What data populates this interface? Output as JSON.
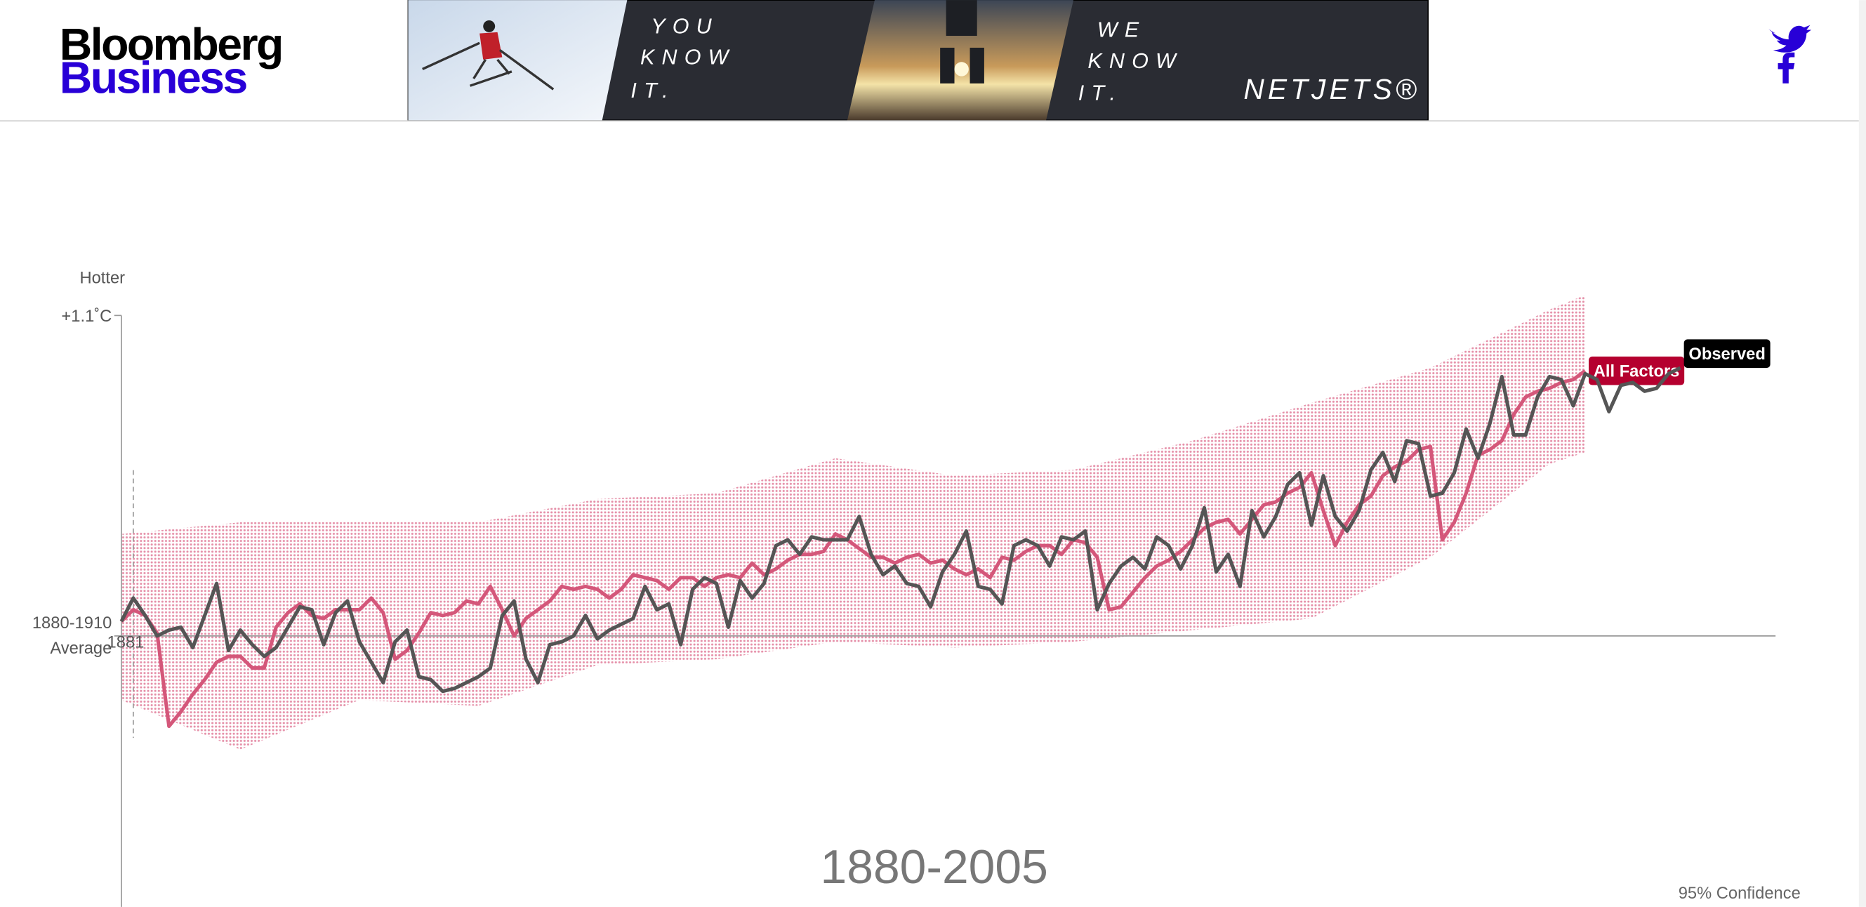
{
  "header": {
    "logo": {
      "line1": "Bloomberg",
      "line2": "Business"
    }
  },
  "ad": {
    "left_text": [
      "YOU",
      "KNOW",
      "IT."
    ],
    "right_text": [
      "WE",
      "KNOW",
      "IT."
    ],
    "brand": "NETJETS®"
  },
  "chart_data": {
    "type": "line",
    "title": "1880-2005",
    "y_annotation": "Hotter",
    "marker_year": 1881,
    "x": [
      1880,
      1881,
      1882,
      1883,
      1884,
      1885,
      1886,
      1887,
      1888,
      1889,
      1890,
      1891,
      1892,
      1893,
      1894,
      1895,
      1896,
      1897,
      1898,
      1899,
      1900,
      1901,
      1902,
      1903,
      1904,
      1905,
      1906,
      1907,
      1908,
      1909,
      1910,
      1911,
      1912,
      1913,
      1914,
      1915,
      1916,
      1917,
      1918,
      1919,
      1920,
      1921,
      1922,
      1923,
      1924,
      1925,
      1926,
      1927,
      1928,
      1929,
      1930,
      1931,
      1932,
      1933,
      1934,
      1935,
      1936,
      1937,
      1938,
      1939,
      1940,
      1941,
      1942,
      1943,
      1944,
      1945,
      1946,
      1947,
      1948,
      1949,
      1950,
      1951,
      1952,
      1953,
      1954,
      1955,
      1956,
      1957,
      1958,
      1959,
      1960,
      1961,
      1962,
      1963,
      1964,
      1965,
      1966,
      1967,
      1968,
      1969,
      1970,
      1971,
      1972,
      1973,
      1974,
      1975,
      1976,
      1977,
      1978,
      1979,
      1980,
      1981,
      1982,
      1983,
      1984,
      1985,
      1986,
      1987,
      1988,
      1989,
      1990,
      1991,
      1992,
      1993,
      1994,
      1995,
      1996,
      1997,
      1998,
      1999,
      2000,
      2001,
      2002,
      2003,
      2004,
      2005,
      2006,
      2007,
      2008,
      2009,
      2010,
      2011
    ],
    "series": [
      {
        "name": "All Factors",
        "color": "#d4577a",
        "label_color": "#b5002f",
        "values": [
          0.05,
          0.09,
          0.07,
          0.01,
          -0.31,
          -0.26,
          -0.2,
          -0.15,
          -0.09,
          -0.07,
          -0.07,
          -0.11,
          -0.11,
          0.03,
          0.08,
          0.11,
          0.07,
          0.06,
          0.09,
          0.09,
          0.09,
          0.13,
          0.08,
          -0.08,
          -0.05,
          0.01,
          0.08,
          0.07,
          0.08,
          0.12,
          0.11,
          0.17,
          0.09,
          0.0,
          0.06,
          0.09,
          0.12,
          0.17,
          0.16,
          0.17,
          0.16,
          0.13,
          0.16,
          0.21,
          0.2,
          0.19,
          0.16,
          0.2,
          0.2,
          0.17,
          0.2,
          0.21,
          0.2,
          0.25,
          0.21,
          0.23,
          0.26,
          0.28,
          0.28,
          0.29,
          0.35,
          0.33,
          0.3,
          0.27,
          0.27,
          0.25,
          0.27,
          0.28,
          0.25,
          0.26,
          0.23,
          0.21,
          0.23,
          0.2,
          0.27,
          0.26,
          0.29,
          0.31,
          0.31,
          0.28,
          0.33,
          0.32,
          0.27,
          0.09,
          0.1,
          0.15,
          0.2,
          0.24,
          0.26,
          0.29,
          0.33,
          0.37,
          0.39,
          0.4,
          0.35,
          0.4,
          0.45,
          0.46,
          0.49,
          0.51,
          0.56,
          0.43,
          0.31,
          0.39,
          0.45,
          0.48,
          0.55,
          0.58,
          0.6,
          0.64,
          0.65,
          0.33,
          0.39,
          0.49,
          0.62,
          0.64,
          0.67,
          0.76,
          0.82,
          0.84,
          0.85,
          0.87,
          0.88,
          0.91,
          null,
          null,
          null,
          null,
          null,
          null,
          null,
          null
        ]
      },
      {
        "name": "Observed",
        "color": "#555555",
        "label_color": "#000000",
        "values": [
          0.05,
          0.13,
          0.07,
          0.0,
          0.02,
          0.03,
          -0.04,
          0.07,
          0.18,
          -0.05,
          0.02,
          -0.03,
          -0.07,
          -0.04,
          0.03,
          0.1,
          0.09,
          -0.03,
          0.08,
          0.12,
          -0.02,
          -0.09,
          -0.16,
          -0.02,
          0.02,
          -0.14,
          -0.15,
          -0.19,
          -0.18,
          -0.16,
          -0.14,
          -0.11,
          0.07,
          0.12,
          -0.08,
          -0.16,
          -0.03,
          -0.02,
          0.0,
          0.07,
          -0.01,
          0.02,
          0.04,
          0.06,
          0.17,
          0.09,
          0.11,
          -0.03,
          0.16,
          0.2,
          0.18,
          0.03,
          0.19,
          0.13,
          0.18,
          0.31,
          0.33,
          0.28,
          0.34,
          0.33,
          0.33,
          0.33,
          0.41,
          0.28,
          0.21,
          0.24,
          0.18,
          0.17,
          0.1,
          0.22,
          0.28,
          0.36,
          0.17,
          0.16,
          0.11,
          0.31,
          0.33,
          0.31,
          0.24,
          0.34,
          0.33,
          0.36,
          0.09,
          0.18,
          0.24,
          0.27,
          0.23,
          0.34,
          0.31,
          0.23,
          0.31,
          0.44,
          0.22,
          0.28,
          0.17,
          0.43,
          0.34,
          0.41,
          0.52,
          0.56,
          0.38,
          0.55,
          0.41,
          0.36,
          0.43,
          0.57,
          0.63,
          0.53,
          0.67,
          0.66,
          0.48,
          0.49,
          0.56,
          0.71,
          0.61,
          0.73,
          0.89,
          0.69,
          0.69,
          0.82,
          0.89,
          0.88,
          0.79,
          0.9,
          0.88,
          0.77,
          0.86,
          0.87,
          0.84,
          0.85,
          0.9,
          0.92
        ]
      }
    ],
    "confidence": {
      "name": "95% Confidence",
      "color": "#e58fa8",
      "x": [
        1880,
        1890,
        1900,
        1910,
        1920,
        1930,
        1940,
        1950,
        1960,
        1970,
        1980,
        1990,
        2000,
        2003
      ],
      "lower": [
        -0.22,
        -0.39,
        -0.22,
        -0.24,
        -0.1,
        -0.08,
        -0.02,
        -0.04,
        -0.02,
        0.02,
        0.06,
        0.27,
        0.59,
        0.63
      ],
      "upper": [
        0.35,
        0.39,
        0.39,
        0.39,
        0.47,
        0.49,
        0.61,
        0.55,
        0.57,
        0.67,
        0.8,
        0.92,
        1.12,
        1.17
      ]
    },
    "xlim": [
      1880,
      2019
    ],
    "ylim": [
      -0.93,
      1.1
    ],
    "yticks": [
      {
        "value": 1.1,
        "label": "+1.1˚C"
      },
      {
        "value": 0,
        "label": "1880-1910 Average"
      }
    ],
    "baseline": 0
  }
}
